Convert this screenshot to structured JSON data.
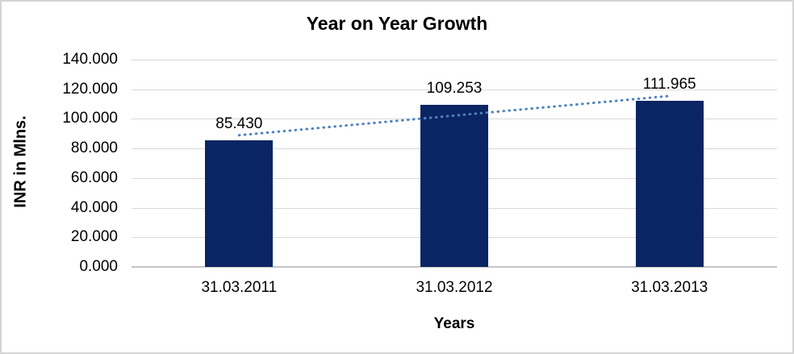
{
  "chart_data": {
    "type": "bar",
    "title": "Year on Year Growth",
    "xlabel": "Years",
    "ylabel": "INR in Mlns.",
    "categories": [
      "31.03.2011",
      "31.03.2012",
      "31.03.2013"
    ],
    "values": [
      85.43,
      109.253,
      111.965
    ],
    "data_labels": [
      "85.430",
      "109.253",
      "111.965"
    ],
    "y_ticks": [
      "140.000",
      "120.000",
      "100.000",
      "80.000",
      "60.000",
      "40.000",
      "20.000",
      "0.000"
    ],
    "ylim": [
      0,
      140
    ],
    "grid": true,
    "legend": false,
    "trendline": {
      "type": "linear",
      "style": "dotted",
      "fit_values": [
        88.949,
        102.216,
        115.484
      ]
    },
    "colors": {
      "bar": "#0a2563",
      "trendline": "#4f81bd",
      "gridline": "#d9d9d9",
      "axis_line": "#c6c6c6",
      "border": "#d4d4d4",
      "background": "#ffffff",
      "text": "#000000"
    }
  }
}
